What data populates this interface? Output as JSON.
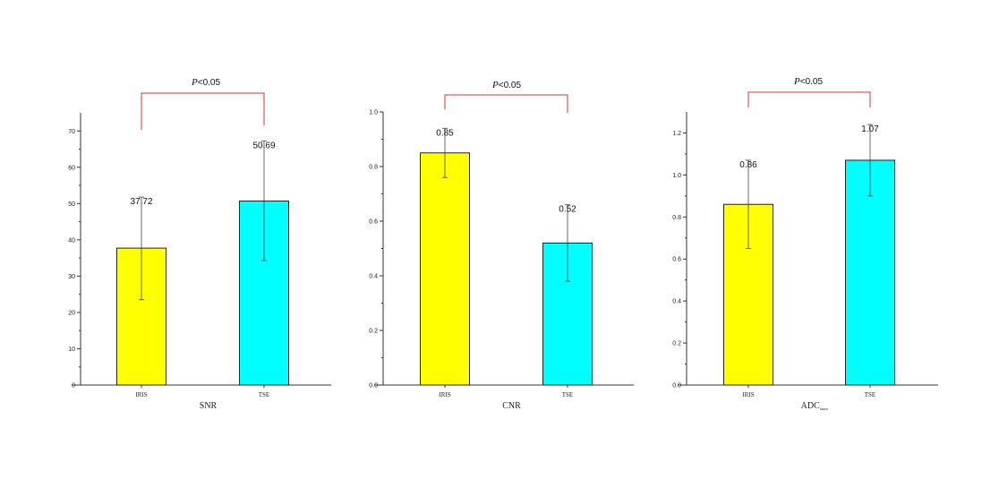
{
  "significance_text": {
    "p_symbol": "P",
    "comparator": "<",
    "threshold": "0.05"
  },
  "chart_data": [
    {
      "type": "bar",
      "categories": [
        "IRIS",
        "TSE"
      ],
      "values": [
        37.72,
        50.69
      ],
      "value_labels": [
        "37.72",
        "50.69"
      ],
      "error_bars": [
        [
          23.5,
          51.8
        ],
        [
          34.3,
          67.2
        ]
      ],
      "colors": [
        "#ffff00",
        "#00ffff"
      ],
      "xlabel": "SNR",
      "xlabel_sub": "",
      "ylim": [
        0,
        75
      ],
      "yticks": [
        0,
        10,
        20,
        30,
        40,
        50,
        60,
        70
      ],
      "ytick_labels": [
        "0",
        "10",
        "20",
        "30",
        "40",
        "50",
        "60",
        "70"
      ],
      "significance": "P<0.05"
    },
    {
      "type": "bar",
      "categories": [
        "IRIS",
        "TSE"
      ],
      "values": [
        0.85,
        0.52
      ],
      "value_labels": [
        "0.85",
        "0.52"
      ],
      "error_bars": [
        [
          0.76,
          0.94
        ],
        [
          0.38,
          0.66
        ]
      ],
      "colors": [
        "#ffff00",
        "#00ffff"
      ],
      "xlabel": "CNR",
      "xlabel_sub": "",
      "ylim": [
        0,
        1.0
      ],
      "yticks": [
        0,
        0.2,
        0.4,
        0.6,
        0.8,
        1.0
      ],
      "ytick_labels": [
        "0.0",
        "0.2",
        "0.4",
        "0.6",
        "0.8",
        "1.0"
      ],
      "significance": "P<0.05"
    },
    {
      "type": "bar",
      "categories": [
        "IRIS",
        "TSE"
      ],
      "values": [
        0.86,
        1.07
      ],
      "value_labels": [
        "0.86",
        "1.07"
      ],
      "error_bars": [
        [
          0.65,
          1.07
        ],
        [
          0.9,
          1.24
        ]
      ],
      "colors": [
        "#ffff00",
        "#00ffff"
      ],
      "xlabel": "ADC",
      "xlabel_sub": "tumor",
      "ylim": [
        0,
        1.3
      ],
      "yticks": [
        0,
        0.2,
        0.4,
        0.6,
        0.8,
        1.0,
        1.2
      ],
      "ytick_labels": [
        "0.0",
        "0.2",
        "0.4",
        "0.6",
        "0.8",
        "1.0",
        "1.2"
      ],
      "significance": "P<0.05"
    }
  ]
}
